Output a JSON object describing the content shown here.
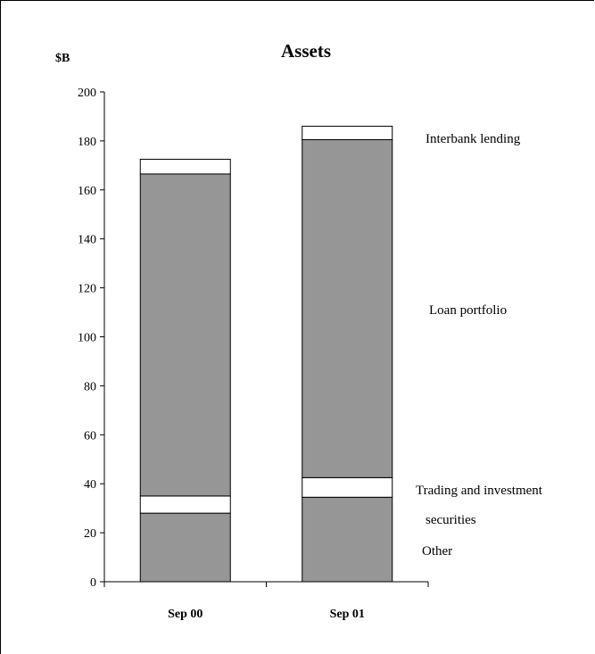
{
  "chart_data": {
    "type": "bar",
    "stacked": true,
    "title": "Assets",
    "ylabel": "$B",
    "xlabel": "",
    "ylim": [
      0,
      200
    ],
    "yticks": [
      0,
      20,
      40,
      60,
      80,
      100,
      120,
      140,
      160,
      180,
      200
    ],
    "categories": [
      "Sep 00",
      "Sep 01"
    ],
    "series": [
      {
        "name": "Other",
        "values": [
          28,
          34.5
        ],
        "color": "#969696"
      },
      {
        "name": "Trading and investment securities",
        "values": [
          7,
          8
        ],
        "color": "#ffffff"
      },
      {
        "name": "Loan portfolio",
        "values": [
          131.5,
          138
        ],
        "color": "#969696"
      },
      {
        "name": "Interbank lending",
        "values": [
          6,
          5.5
        ],
        "color": "#ffffff"
      }
    ],
    "side_labels": [
      {
        "lines": [
          "Interbank lending"
        ]
      },
      {
        "lines": [
          "Loan portfolio"
        ]
      },
      {
        "lines": [
          "Trading and investment",
          "securities"
        ]
      },
      {
        "lines": [
          "Other"
        ]
      }
    ],
    "grid": false,
    "legend": "right, as labels beside bars"
  }
}
